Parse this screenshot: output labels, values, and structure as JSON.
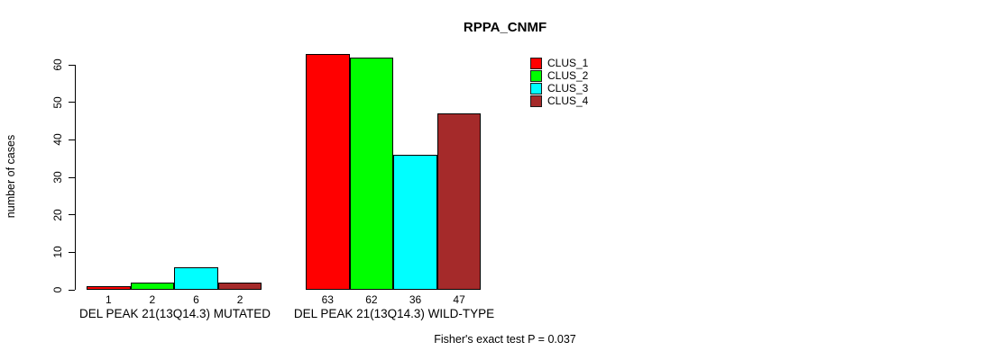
{
  "chart_data": {
    "type": "bar",
    "title": "RPPA_CNMF",
    "ylabel": "number of cases",
    "xlabel": "",
    "yticks": [
      0,
      10,
      20,
      30,
      40,
      50,
      60
    ],
    "ylim": [
      0,
      63
    ],
    "grid": false,
    "legend_position": "right",
    "categories": [
      "DEL PEAK 21(13Q14.3) MUTATED",
      "DEL PEAK 21(13Q14.3) WILD-TYPE"
    ],
    "series": [
      {
        "name": "CLUS_1",
        "color": "#FF0000",
        "values": [
          1,
          63
        ]
      },
      {
        "name": "CLUS_2",
        "color": "#00FF00",
        "values": [
          2,
          62
        ]
      },
      {
        "name": "CLUS_3",
        "color": "#00FFFF",
        "values": [
          6,
          36
        ]
      },
      {
        "name": "CLUS_4",
        "color": "#A52A2A",
        "values": [
          2,
          47
        ]
      }
    ],
    "bar_value_labels": [
      [
        1,
        2,
        6,
        2
      ],
      [
        63,
        62,
        36,
        47
      ]
    ],
    "annotation": "Fisher's exact test P = 0.037"
  }
}
